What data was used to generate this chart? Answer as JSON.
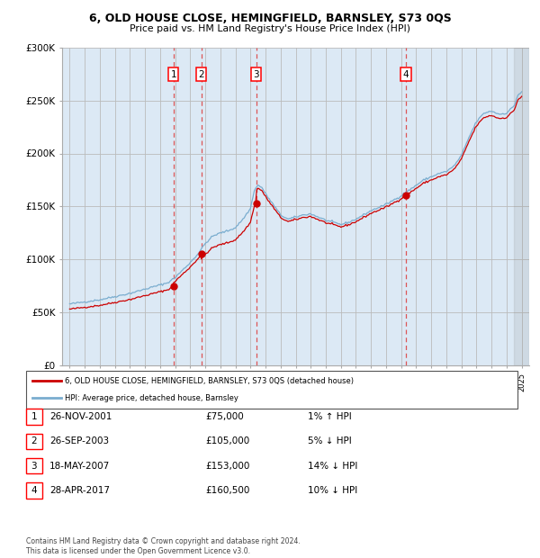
{
  "title": "6, OLD HOUSE CLOSE, HEMINGFIELD, BARNSLEY, S73 0QS",
  "subtitle": "Price paid vs. HM Land Registry's House Price Index (HPI)",
  "ylim": [
    0,
    300000
  ],
  "yticks": [
    0,
    50000,
    100000,
    150000,
    200000,
    250000,
    300000
  ],
  "ytick_labels": [
    "£0",
    "£50K",
    "£100K",
    "£150K",
    "£200K",
    "£250K",
    "£300K"
  ],
  "background_color": "#ffffff",
  "plot_bg_color": "#dce9f5",
  "sale_dates_decimal": [
    2001.9,
    2003.73,
    2007.38,
    2017.32
  ],
  "sale_prices": [
    75000,
    105000,
    153000,
    160500
  ],
  "sale_labels": [
    "1",
    "2",
    "3",
    "4"
  ],
  "legend_line1": "6, OLD HOUSE CLOSE, HEMINGFIELD, BARNSLEY, S73 0QS (detached house)",
  "legend_line2": "HPI: Average price, detached house, Barnsley",
  "table_data": [
    [
      "1",
      "26-NOV-2001",
      "£75,000",
      "1% ↑ HPI"
    ],
    [
      "2",
      "26-SEP-2003",
      "£105,000",
      "5% ↓ HPI"
    ],
    [
      "3",
      "18-MAY-2007",
      "£153,000",
      "14% ↓ HPI"
    ],
    [
      "4",
      "28-APR-2017",
      "£160,500",
      "10% ↓ HPI"
    ]
  ],
  "footer": "Contains HM Land Registry data © Crown copyright and database right 2024.\nThis data is licensed under the Open Government Licence v3.0.",
  "red_color": "#cc0000",
  "blue_color": "#7aadcf",
  "grid_color": "#bbbbbb",
  "vline_color": "#dd4444"
}
